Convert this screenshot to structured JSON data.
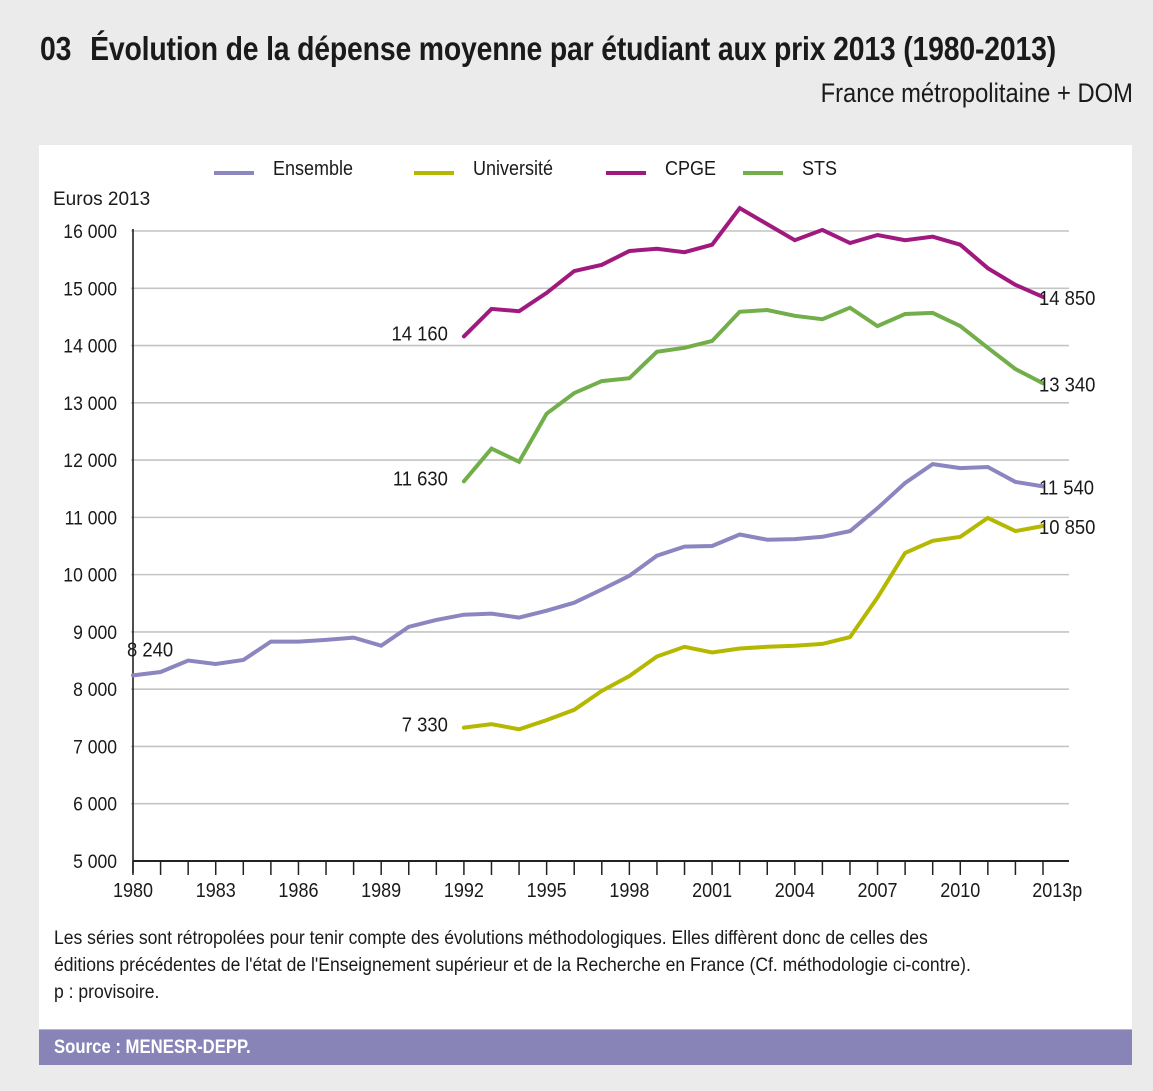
{
  "header": {
    "number": "03",
    "title": "Évolution de la dépense moyenne par étudiant aux prix 2013 (1980-2013)",
    "subtitle": "France métropolitaine + DOM"
  },
  "chart_data": {
    "type": "line",
    "title": "Évolution de la dépense moyenne par étudiant aux prix 2013 (1980-2013)",
    "subtitle": "France métropolitaine + DOM",
    "ylabel": "Euros 2013",
    "xlabel": "",
    "ylim": [
      5000,
      16000
    ],
    "yticks": [
      5000,
      6000,
      7000,
      8000,
      9000,
      10000,
      11000,
      12000,
      13000,
      14000,
      15000,
      16000
    ],
    "ytick_labels": [
      "5 000",
      "6 000",
      "7 000",
      "8 000",
      "9 000",
      "10 000",
      "11 000",
      "12 000",
      "13 000",
      "14 000",
      "15 000",
      "16 000"
    ],
    "xlim": [
      1980,
      2013
    ],
    "xtick_labels": [
      {
        "year": 1980,
        "label": "1980"
      },
      {
        "year": 1983,
        "label": "1983"
      },
      {
        "year": 1986,
        "label": "1986"
      },
      {
        "year": 1989,
        "label": "1989"
      },
      {
        "year": 1992,
        "label": "1992"
      },
      {
        "year": 1995,
        "label": "1995"
      },
      {
        "year": 1998,
        "label": "1998"
      },
      {
        "year": 2001,
        "label": "2001"
      },
      {
        "year": 2004,
        "label": "2004"
      },
      {
        "year": 2007,
        "label": "2007"
      },
      {
        "year": 2010,
        "label": "2010"
      },
      {
        "year": 2013,
        "label": "2013p"
      }
    ],
    "grid": true,
    "legend_position": "top",
    "series": [
      {
        "name": "Ensemble",
        "color": "#8b85c0",
        "start_year": 1980,
        "values": [
          8240,
          8300,
          8500,
          8440,
          8510,
          8830,
          8830,
          8860,
          8900,
          8760,
          9090,
          9210,
          9300,
          9320,
          9250,
          9370,
          9510,
          9740,
          9980,
          10330,
          10490,
          10500,
          10700,
          10610,
          10620,
          10660,
          10760,
          11160,
          11600,
          11930,
          11860,
          11880,
          11620,
          11540
        ],
        "start_label": "8 240",
        "end_label": "11 540"
      },
      {
        "name": "Université",
        "color": "#b5b800",
        "start_year": 1992,
        "values": [
          7330,
          7390,
          7300,
          7460,
          7640,
          7970,
          8230,
          8570,
          8740,
          8640,
          8710,
          8740,
          8760,
          8790,
          8910,
          9600,
          10380,
          10590,
          10660,
          10990,
          10760,
          10850
        ],
        "start_label": "7 330",
        "end_label": "10 850"
      },
      {
        "name": "CPGE",
        "color": "#a0197e",
        "start_year": 1992,
        "values": [
          14160,
          14640,
          14600,
          14920,
          15300,
          15410,
          15650,
          15690,
          15630,
          15760,
          16400,
          16120,
          15840,
          16020,
          15790,
          15930,
          15840,
          15900,
          15760,
          15350,
          15060,
          14850
        ],
        "start_label": "14 160",
        "end_label": "14 850"
      },
      {
        "name": "STS",
        "color": "#72ae4a",
        "start_year": 1992,
        "values": [
          11630,
          12200,
          11970,
          12810,
          13170,
          13380,
          13430,
          13890,
          13960,
          14080,
          14590,
          14620,
          14520,
          14460,
          14660,
          14340,
          14550,
          14570,
          14340,
          13960,
          13590,
          13340
        ],
        "start_label": "11 630",
        "end_label": "13 340"
      }
    ]
  },
  "notes": {
    "line1": "Les séries sont rétropolées pour tenir compte des évolutions méthodologiques. Elles diffèrent donc de celles des",
    "line2": "éditions précédentes de l'état de l'Enseignement supérieur et de la Recherche en France (Cf. méthodologie ci-contre).",
    "line3": "p : provisoire."
  },
  "source": {
    "text": "Source : MENESR-DEPP.",
    "bar_color": "#8884b8"
  }
}
